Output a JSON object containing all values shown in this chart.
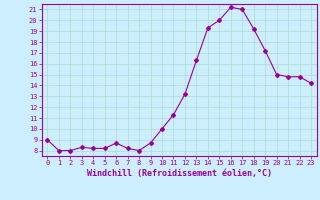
{
  "x": [
    0,
    1,
    2,
    3,
    4,
    5,
    6,
    7,
    8,
    9,
    10,
    11,
    12,
    13,
    14,
    15,
    16,
    17,
    18,
    19,
    20,
    21,
    22,
    23
  ],
  "y": [
    9.0,
    8.0,
    8.0,
    8.3,
    8.2,
    8.2,
    8.7,
    8.2,
    8.0,
    8.7,
    10.0,
    11.3,
    13.2,
    16.3,
    19.3,
    20.0,
    21.2,
    21.0,
    19.2,
    17.2,
    15.0,
    14.8,
    14.8,
    14.2
  ],
  "line_color": "#990099",
  "marker": "D",
  "marker_size": 2.0,
  "bg_color": "#cceeff",
  "grid_color": "#aaddcc",
  "xlabel": "Windchill (Refroidissement éolien,°C)",
  "xlabel_color": "#990099",
  "tick_color": "#990099",
  "axis_color": "#990099",
  "ylim": [
    7.5,
    21.5
  ],
  "xlim": [
    -0.5,
    23.5
  ],
  "yticks": [
    8,
    9,
    10,
    11,
    12,
    13,
    14,
    15,
    16,
    17,
    18,
    19,
    20,
    21
  ],
  "xticks": [
    0,
    1,
    2,
    3,
    4,
    5,
    6,
    7,
    8,
    9,
    10,
    11,
    12,
    13,
    14,
    15,
    16,
    17,
    18,
    19,
    20,
    21,
    22,
    23
  ],
  "tick_fontsize": 5.0,
  "xlabel_fontsize": 6.0,
  "linewidth": 0.8
}
